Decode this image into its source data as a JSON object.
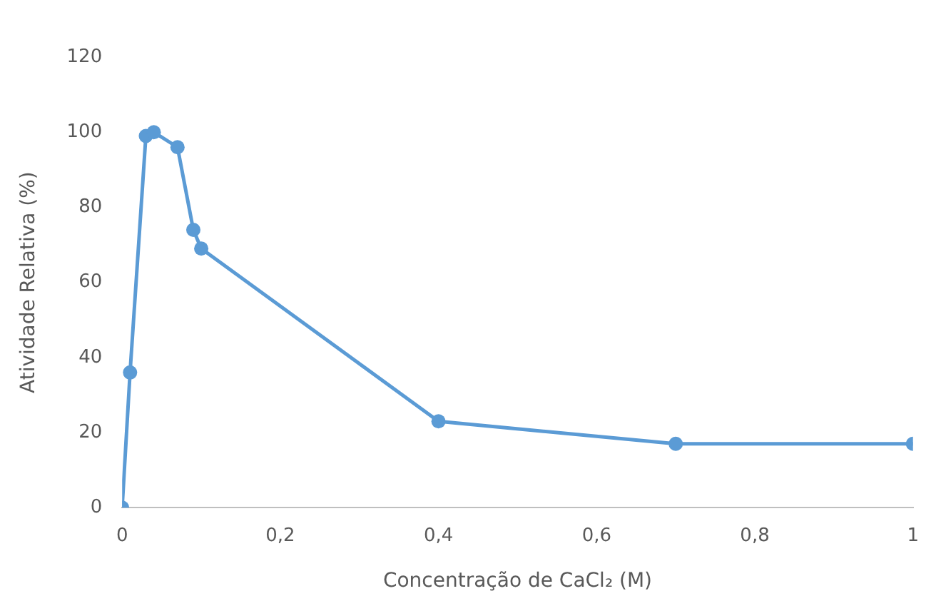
{
  "chart_data": {
    "type": "line",
    "xlabel": "Concentração de CaCl₂ (M)",
    "ylabel": "Atividade Relativa (%)",
    "x": [
      0,
      0.01,
      0.03,
      0.04,
      0.07,
      0.09,
      0.1,
      0.4,
      0.7,
      1
    ],
    "series": [
      {
        "color": "#5b9bd5",
        "values": [
          0,
          36,
          99,
          100,
          96,
          74,
          69,
          23,
          17,
          17
        ]
      }
    ],
    "xlim": [
      0,
      1
    ],
    "xticks": [
      0,
      {
        "value": 0.2,
        "label": "0,2"
      },
      {
        "value": 0.4,
        "label": "0,4"
      },
      {
        "value": 0.6,
        "label": "0,6"
      },
      {
        "value": 0.8,
        "label": "0,8"
      },
      1
    ],
    "ylim": [
      0,
      120
    ],
    "yticks": [
      0,
      20,
      40,
      60,
      80,
      100,
      120
    ],
    "grid": false,
    "legend": false,
    "marker": "circle",
    "line_style": "solid"
  }
}
